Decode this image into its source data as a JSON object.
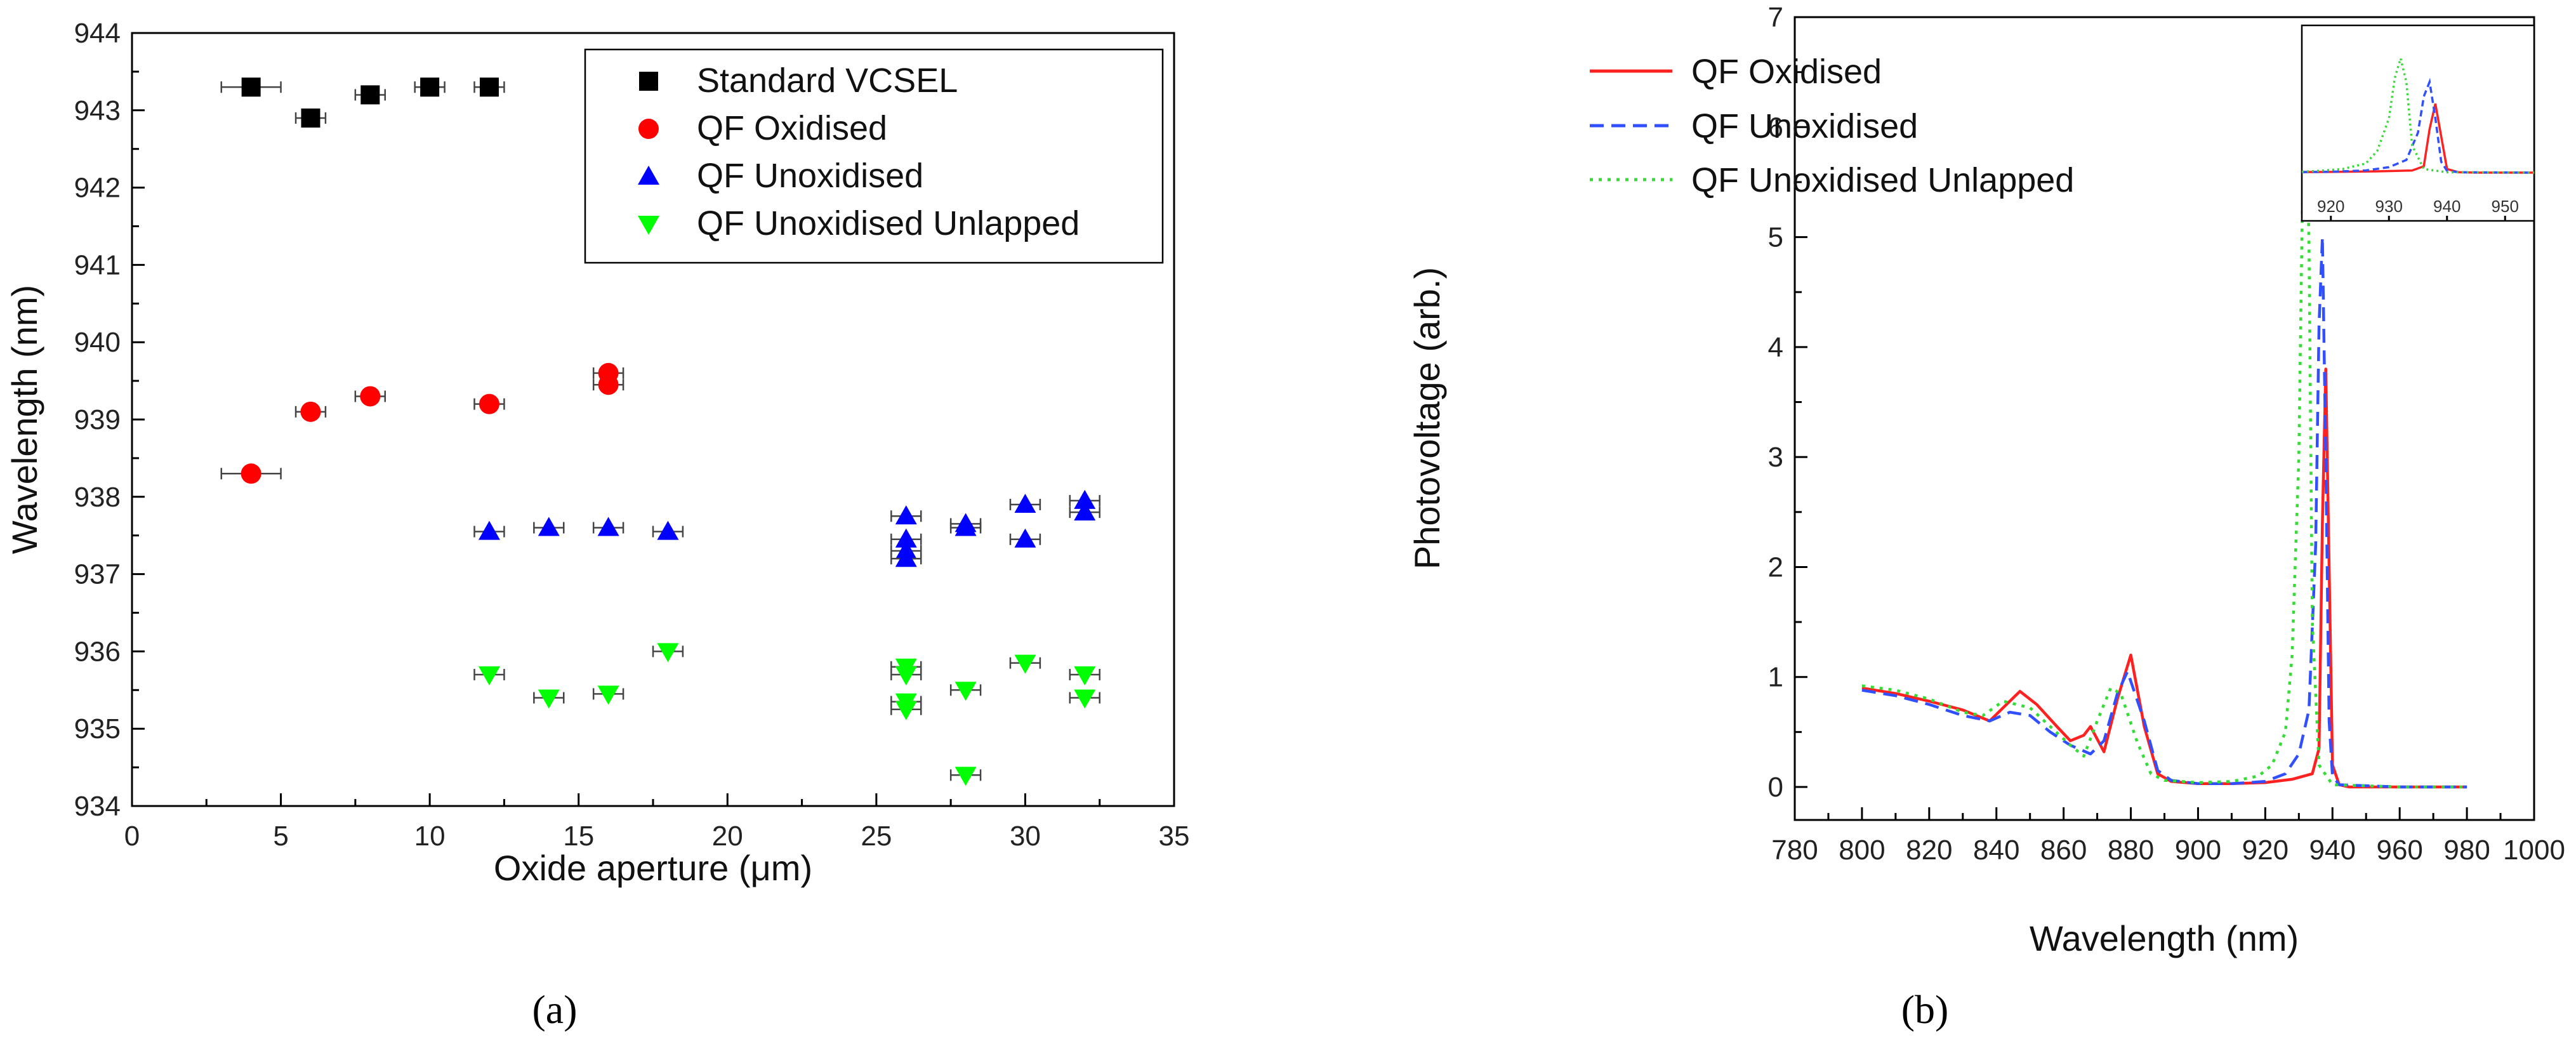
{
  "chart_data": [
    {
      "panel": "(a)",
      "type": "scatter",
      "xlabel": "Oxide aperture (μm)",
      "ylabel": "Wavelength (nm)",
      "xlim": [
        0,
        35
      ],
      "ylim": [
        934,
        944
      ],
      "xticks": [
        0,
        5,
        10,
        15,
        20,
        25,
        30,
        35
      ],
      "yticks": [
        934,
        935,
        936,
        937,
        938,
        939,
        940,
        941,
        942,
        943,
        944
      ],
      "legend_position": "top-right",
      "series": [
        {
          "name": "Standard VCSEL",
          "marker": "square",
          "color": "#000000",
          "points": [
            [
              4,
              943.3,
              1
            ],
            [
              6,
              942.9,
              0.5
            ],
            [
              8,
              943.2,
              0.5
            ],
            [
              10,
              943.3,
              0.5
            ],
            [
              12,
              943.3,
              0.5
            ]
          ]
        },
        {
          "name": "QF Oxidised",
          "marker": "circle",
          "color": "#ff0000",
          "points": [
            [
              4,
              938.3,
              1
            ],
            [
              6,
              939.1,
              0.5
            ],
            [
              8,
              939.3,
              0.5
            ],
            [
              12,
              939.2,
              0.5
            ],
            [
              16,
              939.6,
              0.5
            ],
            [
              16,
              939.45,
              0.5
            ]
          ]
        },
        {
          "name": "QF Unoxidised",
          "marker": "triangle-up",
          "color": "#0000ff",
          "points": [
            [
              12,
              937.55,
              0.5
            ],
            [
              14,
              937.6,
              0.5
            ],
            [
              16,
              937.6,
              0.5
            ],
            [
              18,
              937.55,
              0.5
            ],
            [
              26,
              937.75,
              0.5
            ],
            [
              26,
              937.45,
              0.5
            ],
            [
              26,
              937.3,
              0.5
            ],
            [
              26,
              937.2,
              0.5
            ],
            [
              28,
              937.6,
              0.5
            ],
            [
              28,
              937.65,
              0.5
            ],
            [
              30,
              937.9,
              0.5
            ],
            [
              30,
              937.45,
              0.5
            ],
            [
              32,
              937.95,
              0.5
            ],
            [
              32,
              937.8,
              0.5
            ]
          ]
        },
        {
          "name": "QF Unoxidised Unlapped",
          "marker": "triangle-down",
          "color": "#00ff00",
          "points": [
            [
              12,
              935.7,
              0.5
            ],
            [
              14,
              935.4,
              0.5
            ],
            [
              16,
              935.45,
              0.5
            ],
            [
              18,
              936.0,
              0.5
            ],
            [
              26,
              935.8,
              0.5
            ],
            [
              26,
              935.7,
              0.5
            ],
            [
              26,
              935.35,
              0.5
            ],
            [
              26,
              935.25,
              0.5
            ],
            [
              28,
              935.5,
              0.5
            ],
            [
              28,
              934.4,
              0.5
            ],
            [
              30,
              935.85,
              0.5
            ],
            [
              32,
              935.7,
              0.5
            ],
            [
              32,
              935.4,
              0.5
            ]
          ]
        }
      ]
    },
    {
      "panel": "(b)",
      "type": "line",
      "xlabel": "Wavelength (nm)",
      "ylabel": "Photovoltage (arb.)",
      "xlim": [
        780,
        1000
      ],
      "ylim": [
        -0.3,
        7
      ],
      "xticks": [
        780,
        800,
        820,
        840,
        860,
        880,
        900,
        920,
        940,
        960,
        980,
        1000
      ],
      "yticks": [
        0,
        1,
        2,
        3,
        4,
        5,
        6,
        7
      ],
      "legend_position": "top-left",
      "series": [
        {
          "name": "QF Oxidised",
          "style": "solid",
          "color": "#ff2020",
          "x": [
            800,
            810,
            820,
            830,
            838,
            842,
            847,
            852,
            858,
            862,
            866,
            868,
            872,
            876,
            880,
            884,
            888,
            892,
            900,
            910,
            920,
            928,
            934,
            936,
            937,
            938,
            939,
            940,
            942,
            945,
            960,
            980
          ],
          "y": [
            0.9,
            0.85,
            0.78,
            0.7,
            0.6,
            0.72,
            0.87,
            0.75,
            0.55,
            0.42,
            0.47,
            0.55,
            0.32,
            0.8,
            1.2,
            0.55,
            0.12,
            0.05,
            0.03,
            0.03,
            0.04,
            0.07,
            0.12,
            0.35,
            2.4,
            3.8,
            2.0,
            0.2,
            0.02,
            0.0,
            0.0,
            0.0
          ]
        },
        {
          "name": "QF Unoxidised",
          "style": "dashed",
          "color": "#3050ff",
          "x": [
            800,
            810,
            820,
            830,
            838,
            844,
            850,
            856,
            862,
            868,
            872,
            876,
            879,
            884,
            888,
            892,
            900,
            910,
            920,
            926,
            930,
            933,
            935,
            936,
            937,
            938,
            939,
            940,
            942,
            960,
            980
          ],
          "y": [
            0.88,
            0.83,
            0.75,
            0.65,
            0.6,
            0.68,
            0.65,
            0.5,
            0.38,
            0.3,
            0.42,
            0.85,
            1.05,
            0.6,
            0.15,
            0.06,
            0.03,
            0.03,
            0.05,
            0.12,
            0.3,
            0.7,
            2.2,
            4.2,
            5.0,
            3.0,
            0.6,
            0.1,
            0.02,
            0.0,
            0.0
          ]
        },
        {
          "name": "QF Unoxidised Unlapped",
          "style": "dotted",
          "color": "#33dd33",
          "x": [
            800,
            810,
            820,
            830,
            836,
            842,
            850,
            856,
            862,
            866,
            870,
            874,
            877,
            882,
            886,
            890,
            900,
            910,
            918,
            922,
            926,
            928,
            930,
            931,
            932,
            933,
            934,
            936,
            940,
            960,
            980
          ],
          "y": [
            0.92,
            0.88,
            0.8,
            0.68,
            0.65,
            0.78,
            0.72,
            0.55,
            0.38,
            0.28,
            0.6,
            0.9,
            0.85,
            0.4,
            0.12,
            0.06,
            0.04,
            0.05,
            0.1,
            0.2,
            0.5,
            1.2,
            3.0,
            5.2,
            6.3,
            5.0,
            1.5,
            0.2,
            0.02,
            0.0,
            0.0
          ]
        }
      ],
      "inset": {
        "xlim": [
          915,
          955
        ],
        "xticks": [
          920,
          930,
          940,
          950
        ]
      }
    }
  ]
}
